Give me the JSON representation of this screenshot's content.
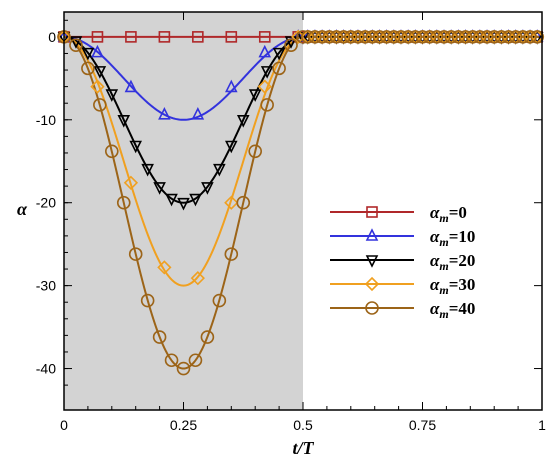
{
  "chart_data": {
    "type": "line",
    "xlabel": "t/T",
    "ylabel": "α",
    "xlim": [
      0,
      1
    ],
    "ylim": [
      -45,
      3
    ],
    "xticks": [
      0,
      0.25,
      0.5,
      0.75,
      1
    ],
    "xtick_labels": [
      "0",
      "0.25",
      "0.5",
      "0.75",
      "1"
    ],
    "yticks": [
      0,
      -10,
      -20,
      -30,
      -40
    ],
    "ytick_labels": [
      "0",
      "-10",
      "-20",
      "-30",
      "-40"
    ],
    "shaded_region": [
      0,
      0.5
    ],
    "shade_color": "#d3d3d3",
    "legend_position": "right",
    "series": [
      {
        "name": "αm=0",
        "legend_symbol": "α",
        "legend_sub": "m",
        "legend_value": "=0",
        "color": "#b0282a",
        "marker": "square",
        "amplitude": 0,
        "x": [
          0,
          0.07,
          0.14,
          0.21,
          0.28,
          0.35,
          0.42,
          0.49
        ],
        "y": [
          0,
          0,
          0,
          0,
          0,
          0,
          0,
          0
        ]
      },
      {
        "name": "αm=10",
        "legend_symbol": "α",
        "legend_sub": "m",
        "legend_value": "=10",
        "color": "#3333dd",
        "marker": "triangle-up",
        "amplitude": 10,
        "x": [
          0,
          0.07,
          0.14,
          0.21,
          0.28,
          0.35,
          0.42,
          0.49
        ],
        "y": [
          0,
          -1.9,
          -6.1,
          -9.4,
          -9.4,
          -6.1,
          -1.9,
          0
        ]
      },
      {
        "name": "αm=20",
        "legend_symbol": "α",
        "legend_sub": "m",
        "legend_value": "=20",
        "color": "#000000",
        "marker": "triangle-down",
        "amplitude": 20,
        "x": [
          0,
          0.025,
          0.05,
          0.075,
          0.1,
          0.125,
          0.15,
          0.175,
          0.2,
          0.225,
          0.25,
          0.275,
          0.3,
          0.325,
          0.35,
          0.375,
          0.4,
          0.425,
          0.45,
          0.475,
          0.5
        ],
        "y": [
          0,
          -0.5,
          -1.9,
          -4.1,
          -6.9,
          -10,
          -13.1,
          -15.9,
          -18.1,
          -19.5,
          -20,
          -19.5,
          -18.1,
          -15.9,
          -13.1,
          -10,
          -6.9,
          -4.1,
          -1.9,
          -0.5,
          0
        ]
      },
      {
        "name": "αm=30",
        "legend_symbol": "α",
        "legend_sub": "m",
        "legend_value": "=30",
        "color": "#f0a020",
        "marker": "diamond",
        "amplitude": 30,
        "x": [
          0,
          0.07,
          0.14,
          0.21,
          0.28,
          0.35,
          0.42,
          0.49
        ],
        "y": [
          0,
          -6.0,
          -17.6,
          -27.8,
          -29.1,
          -20.0,
          -6.0,
          0
        ]
      },
      {
        "name": "αm=40",
        "legend_symbol": "α",
        "legend_sub": "m",
        "legend_value": "=40",
        "color": "#9c6418",
        "marker": "circle",
        "amplitude": 40,
        "x": [
          0,
          0.025,
          0.05,
          0.075,
          0.1,
          0.125,
          0.15,
          0.175,
          0.2,
          0.225,
          0.25,
          0.275,
          0.3,
          0.325,
          0.35,
          0.375,
          0.4,
          0.425,
          0.45,
          0.475,
          0.5
        ],
        "y": [
          0,
          -1.0,
          -3.8,
          -8.2,
          -13.8,
          -20.0,
          -26.2,
          -31.8,
          -36.2,
          -39.0,
          -40.0,
          -39.0,
          -36.2,
          -31.8,
          -26.2,
          -20.0,
          -13.8,
          -8.2,
          -3.8,
          -1.0,
          0
        ]
      }
    ],
    "flat_markers_x": [
      0.51,
      0.525,
      0.54,
      0.555,
      0.57,
      0.585,
      0.6,
      0.615,
      0.63,
      0.645,
      0.66,
      0.675,
      0.69,
      0.705,
      0.72,
      0.735,
      0.75,
      0.765,
      0.78,
      0.795,
      0.81,
      0.825,
      0.84,
      0.855,
      0.87,
      0.885,
      0.9,
      0.915,
      0.93,
      0.945,
      0.96,
      0.975,
      0.99
    ]
  }
}
